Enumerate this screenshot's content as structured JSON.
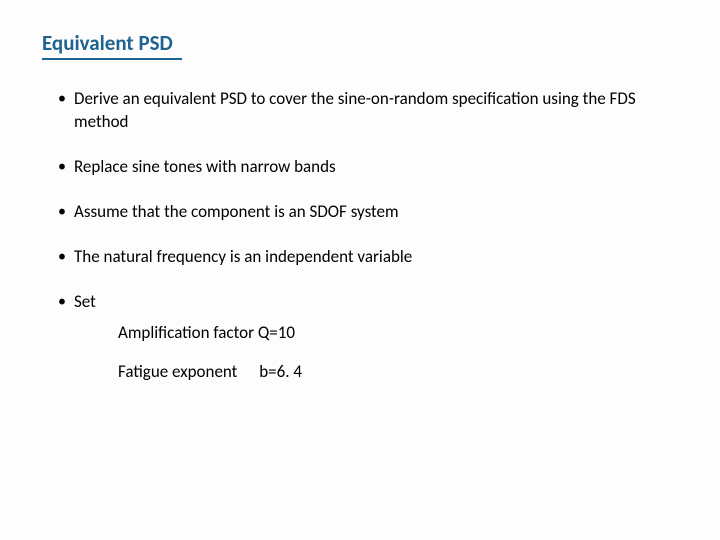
{
  "title": "Equivalent PSD",
  "bullets": [
    "Derive an equivalent PSD to cover the sine-on-random specification using the FDS method",
    "Replace sine tones with narrow bands",
    "Assume that the component is an SDOF system",
    "The natural frequency is an independent variable",
    "Set"
  ],
  "set": {
    "amp_label": "Amplification factor Q=10",
    "fatigue_label": "Fatigue exponent",
    "fatigue_value": "b=6. 4"
  },
  "colors": {
    "title": "#1f6390",
    "text": "#000000",
    "background": "#fdfdfd"
  }
}
